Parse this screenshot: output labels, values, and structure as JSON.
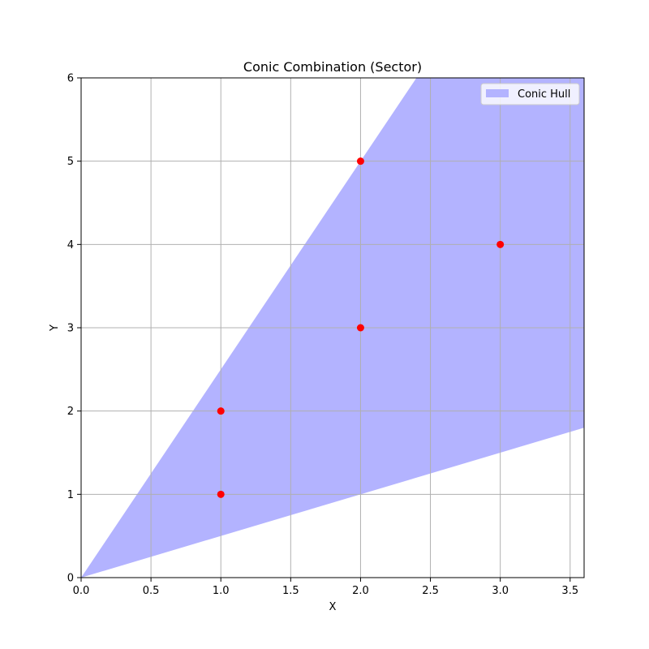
{
  "chart_data": {
    "type": "scatter",
    "title": "Conic Combination (Sector)",
    "xlabel": "X",
    "ylabel": "Y",
    "xlim": [
      0,
      3.6
    ],
    "ylim": [
      0,
      6
    ],
    "x_ticks": [
      "0.0",
      "0.5",
      "1.0",
      "1.5",
      "2.0",
      "2.5",
      "3.0",
      "3.5"
    ],
    "y_ticks": [
      "0",
      "1",
      "2",
      "3",
      "4",
      "5",
      "6"
    ],
    "grid": true,
    "legend_position": "top-right",
    "points": [
      {
        "x": 1,
        "y": 1
      },
      {
        "x": 1,
        "y": 2
      },
      {
        "x": 2,
        "y": 3
      },
      {
        "x": 2,
        "y": 5
      },
      {
        "x": 3,
        "y": 4
      }
    ],
    "hull": {
      "name": "Conic Hull",
      "ray_slopes": [
        0.5,
        2.5
      ],
      "color": "#b3b3ff"
    },
    "point_color": "#ff0000",
    "grid_color": "#b0b0b0"
  }
}
